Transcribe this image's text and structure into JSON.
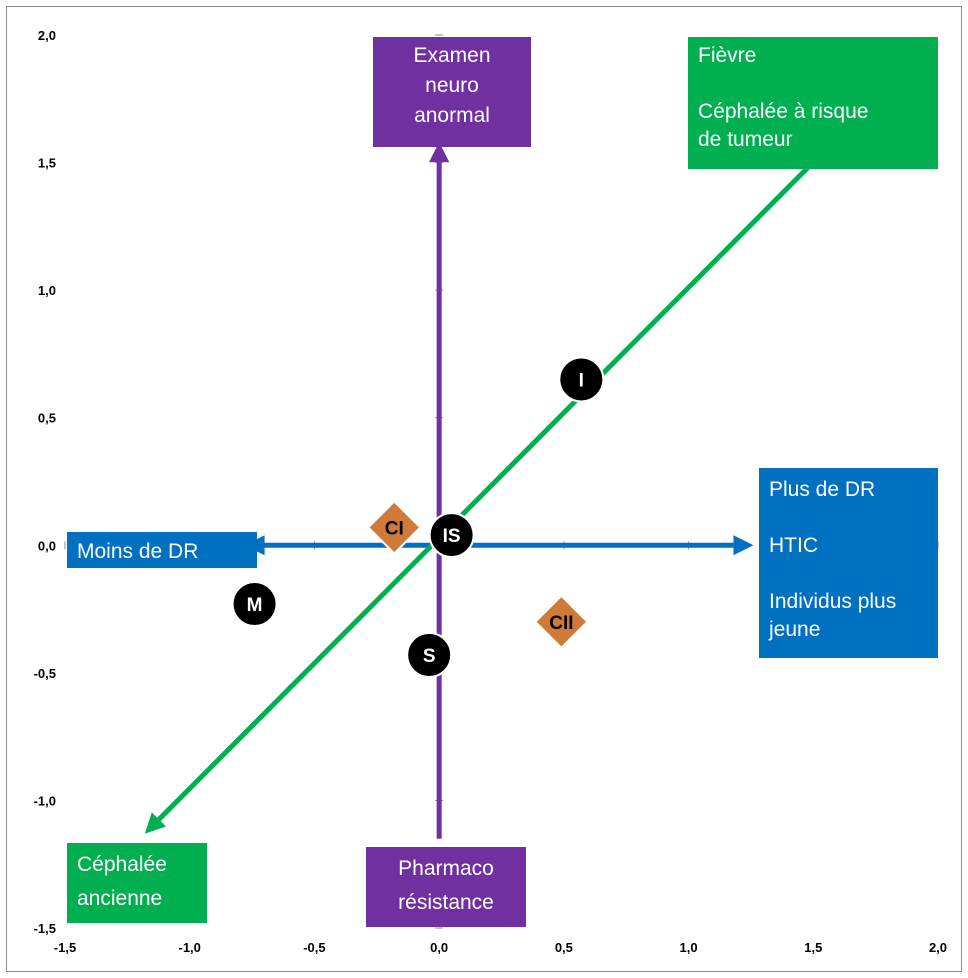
{
  "chart_data": {
    "type": "scatter",
    "title": "",
    "xlabel": "",
    "ylabel": "",
    "xlim": [
      -1.5,
      2.0
    ],
    "ylim": [
      -1.5,
      2.0
    ],
    "xticks": [
      "-1,5",
      "-1,0",
      "-0,5",
      "0,0",
      "0,5",
      "1,0",
      "1,5",
      "2,0"
    ],
    "yticks": [
      "-1,5",
      "-1,0",
      "-0,5",
      "0,0",
      "0,5",
      "1,0",
      "1,5",
      "2,0"
    ],
    "grid": false,
    "colors": {
      "green": "#00b050",
      "purple": "#7030a0",
      "blue": "#0070c0",
      "orange": "#d07a3a",
      "black": "#000000"
    },
    "axes_arrows": [
      {
        "name": "horizontal",
        "color": "#0070c0",
        "from": [
          -0.78,
          0.0
        ],
        "to": [
          1.26,
          0.0
        ]
      },
      {
        "name": "vertical",
        "color": "#7030a0",
        "from": [
          0.0,
          -1.15
        ],
        "to": [
          0.0,
          1.58
        ]
      },
      {
        "name": "diagonal",
        "color": "#00b050",
        "from": [
          1.58,
          1.58
        ],
        "to": [
          -1.18,
          -1.13
        ]
      }
    ],
    "points": [
      {
        "label": "I",
        "x": 0.57,
        "y": 0.65,
        "shape": "circle",
        "color": "#000000"
      },
      {
        "label": "IS",
        "x": 0.05,
        "y": 0.04,
        "shape": "circle",
        "color": "#000000"
      },
      {
        "label": "M",
        "x": -0.74,
        "y": -0.23,
        "shape": "circle",
        "color": "#000000"
      },
      {
        "label": "S",
        "x": -0.04,
        "y": -0.43,
        "shape": "circle",
        "color": "#000000"
      },
      {
        "label": "CI",
        "x": -0.18,
        "y": 0.07,
        "shape": "diamond",
        "color": "#d07a3a"
      },
      {
        "label": "CII",
        "x": 0.49,
        "y": -0.3,
        "shape": "diamond",
        "color": "#d07a3a"
      }
    ],
    "annotations": [
      {
        "id": "top",
        "color": "#7030a0",
        "align": "center",
        "lines": [
          "Examen",
          "neuro",
          "anormal"
        ]
      },
      {
        "id": "top-right",
        "color": "#00b050",
        "align": "left",
        "lines": [
          "Fièvre",
          "",
          "Céphalée à risque",
          "de tumeur"
        ]
      },
      {
        "id": "right",
        "color": "#0070c0",
        "align": "left",
        "lines": [
          "Plus de DR",
          "",
          "HTIC",
          "",
          "Individus plus",
          "jeune"
        ]
      },
      {
        "id": "left",
        "color": "#0070c0",
        "align": "left",
        "lines": [
          "Moins de DR"
        ]
      },
      {
        "id": "bottom",
        "color": "#7030a0",
        "align": "center",
        "lines": [
          "Pharmaco",
          "résistance"
        ]
      },
      {
        "id": "bottom-left",
        "color": "#00b050",
        "align": "left",
        "lines": [
          "Céphalée",
          "ancienne"
        ]
      }
    ]
  }
}
